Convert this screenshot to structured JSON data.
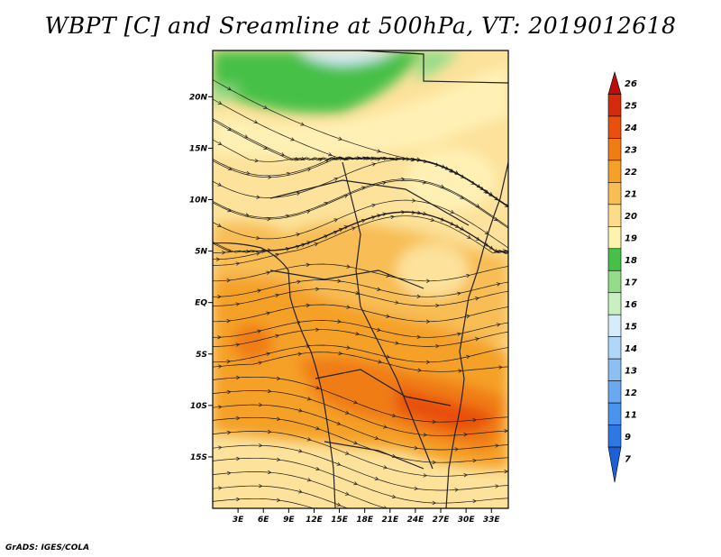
{
  "chart_data": {
    "type": "heatmap",
    "title": "WBPT [C] and Sreamline at 500hPa, VT: 2019012618",
    "x_ticks": [
      "3E",
      "6E",
      "9E",
      "12E",
      "15E",
      "18E",
      "21E",
      "24E",
      "27E",
      "30E",
      "33E"
    ],
    "y_ticks": [
      "20N",
      "15N",
      "10N",
      "5N",
      "EQ",
      "5S",
      "10S",
      "15S"
    ],
    "x_range_lon": [
      0,
      35
    ],
    "y_range_lat": [
      -20,
      24.5
    ],
    "colorbar_labels": [
      "7",
      "9",
      "11",
      "12",
      "13",
      "14",
      "15",
      "16",
      "17",
      "18",
      "19",
      "20",
      "21",
      "22",
      "23",
      "24",
      "25",
      "26"
    ],
    "colorbar_colors": [
      "#1f5fd6",
      "#2e78e6",
      "#4a93ee",
      "#6aa9f2",
      "#8cc0f5",
      "#b0d6f8",
      "#d6ecfb",
      "#c8f0c0",
      "#94dc8a",
      "#46c046",
      "#fff3b0",
      "#fcdb8a",
      "#f8bd54",
      "#f5a028",
      "#f07c14",
      "#e8500e",
      "#d62a0c",
      "#b80e0e"
    ],
    "fields": {
      "green_band": "north (~18N–25N), 16–18C",
      "orange_core": "10S–5S, 15E–30E, 22–23C",
      "background": "19–21C"
    },
    "grid": false,
    "legend": "right colorbar"
  },
  "footer": "GrADS: IGES/COLA"
}
